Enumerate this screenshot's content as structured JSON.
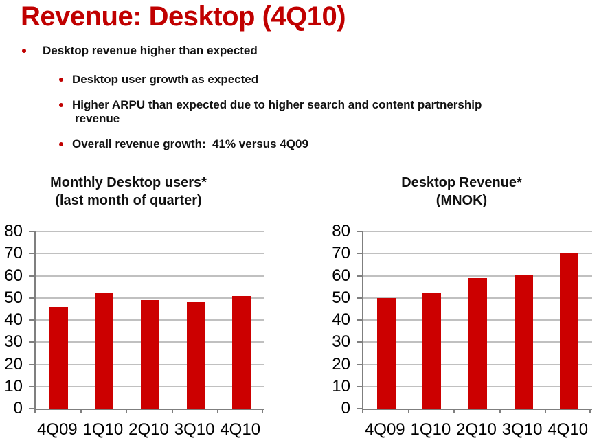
{
  "slide": {
    "title": "Revenue: Desktop (4Q10)",
    "title_color": "#C00000",
    "text_color": "#111111"
  },
  "bullets": [
    {
      "level": 1,
      "lines": [
        "Desktop revenue higher than expected"
      ]
    },
    {
      "level": 2,
      "lines": [
        "Desktop user growth as expected"
      ]
    },
    {
      "level": 2,
      "lines": [
        "Higher ARPU than expected due to higher search and content partnership",
        "revenue"
      ]
    },
    {
      "level": 2,
      "lines": [
        "Overall revenue growth:  41% versus 4Q09"
      ]
    }
  ],
  "chart_data": [
    {
      "type": "bar",
      "name": "monthly-desktop-users",
      "title_lines": [
        "Monthly Desktop users*",
        "(last month of quarter)"
      ],
      "categories": [
        "4Q09",
        "1Q10",
        "2Q10",
        "3Q10",
        "4Q10"
      ],
      "values": [
        46,
        52,
        49,
        48,
        51
      ],
      "ylim": [
        0,
        80
      ],
      "yticks": [
        0,
        10,
        20,
        30,
        40,
        50,
        60,
        70,
        80
      ],
      "grid": true,
      "legend": "none",
      "bar_color": "#CC0000",
      "gridline_color": "#C0C0C0",
      "axis_color": "#7F7F7F"
    },
    {
      "type": "bar",
      "name": "desktop-revenue",
      "title_lines": [
        "Desktop Revenue*",
        "(MNOK)"
      ],
      "categories": [
        "4Q09",
        "1Q10",
        "2Q10",
        "3Q10",
        "4Q10"
      ],
      "values": [
        50,
        52,
        59,
        60.5,
        70.5
      ],
      "ylim": [
        0,
        80
      ],
      "yticks": [
        0,
        10,
        20,
        30,
        40,
        50,
        60,
        70,
        80
      ],
      "grid": true,
      "legend": "none",
      "bar_color": "#CC0000",
      "gridline_color": "#C0C0C0",
      "axis_color": "#7F7F7F"
    }
  ]
}
